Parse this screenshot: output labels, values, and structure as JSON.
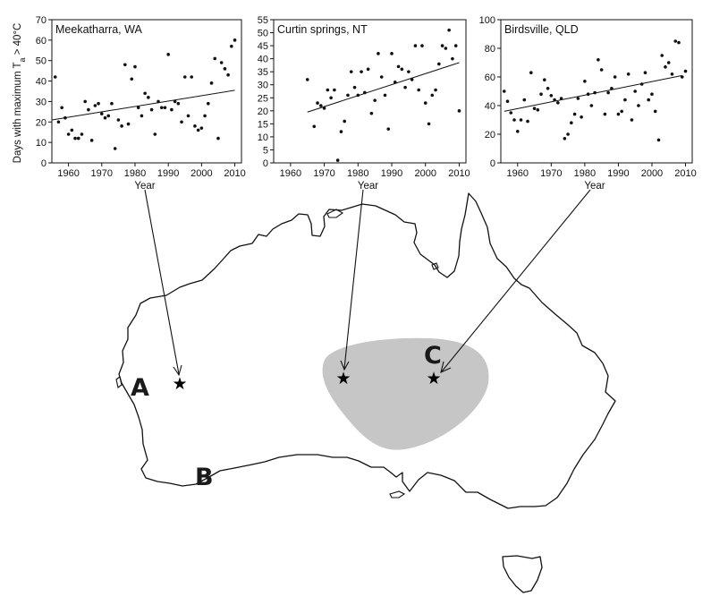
{
  "figure": {
    "ylabel": "Days with maximum T",
    "ylabel_sub": "a",
    "ylabel_tail": " > 40°C"
  },
  "chart_data": [
    {
      "type": "scatter",
      "title": "Meekatharra, WA",
      "xlabel": "Year",
      "ylabel": "Days with maximum Ta > 40°C",
      "xlim": [
        1955,
        2012
      ],
      "ylim": [
        0,
        70
      ],
      "xticks": [
        1960,
        1970,
        1980,
        1990,
        2000,
        2010
      ],
      "yticks": [
        0,
        10,
        20,
        30,
        40,
        50,
        60,
        70
      ],
      "x": [
        1956,
        1957,
        1958,
        1959,
        1960,
        1961,
        1962,
        1963,
        1964,
        1965,
        1966,
        1967,
        1968,
        1969,
        1970,
        1971,
        1972,
        1973,
        1974,
        1975,
        1976,
        1977,
        1978,
        1979,
        1980,
        1981,
        1982,
        1983,
        1984,
        1985,
        1986,
        1987,
        1988,
        1989,
        1990,
        1991,
        1992,
        1993,
        1994,
        1995,
        1996,
        1997,
        1998,
        1999,
        2000,
        2001,
        2002,
        2003,
        2004,
        2005,
        2006,
        2007,
        2008,
        2009,
        2010
      ],
      "y": [
        42,
        20,
        27,
        22,
        14,
        16,
        12,
        12,
        14,
        30,
        26,
        11,
        28,
        29,
        24,
        22,
        23,
        29,
        7,
        21,
        18,
        48,
        19,
        41,
        47,
        27,
        23,
        34,
        32,
        26,
        14,
        30,
        27,
        27,
        53,
        26,
        30,
        29,
        20,
        42,
        23,
        42,
        18,
        16,
        17,
        23,
        29,
        39,
        51,
        12,
        49,
        46,
        43,
        57,
        60
      ],
      "trend": {
        "x": [
          1955,
          2010
        ],
        "y": [
          21,
          35.5
        ]
      }
    },
    {
      "type": "scatter",
      "title": "Curtin springs, NT",
      "xlabel": "Year",
      "ylabel": "",
      "xlim": [
        1955,
        2012
      ],
      "ylim": [
        0,
        55
      ],
      "xticks": [
        1960,
        1970,
        1980,
        1990,
        2000,
        2010
      ],
      "yticks": [
        0,
        5,
        10,
        15,
        20,
        25,
        30,
        35,
        40,
        45,
        50,
        55
      ],
      "x": [
        1965,
        1967,
        1968,
        1969,
        1970,
        1971,
        1972,
        1973,
        1974,
        1975,
        1976,
        1977,
        1978,
        1979,
        1980,
        1981,
        1982,
        1983,
        1984,
        1985,
        1986,
        1987,
        1988,
        1989,
        1990,
        1991,
        1992,
        1993,
        1994,
        1995,
        1996,
        1997,
        1998,
        1999,
        2000,
        2001,
        2002,
        2003,
        2004,
        2005,
        2006,
        2007,
        2008,
        2009,
        2010
      ],
      "y": [
        32,
        14,
        23,
        22,
        21,
        28,
        25,
        28,
        1,
        12,
        16,
        26,
        35,
        29,
        26,
        35,
        27,
        36,
        19,
        24,
        42,
        33,
        26,
        13,
        42,
        31,
        37,
        36,
        29,
        35,
        32,
        45,
        28,
        45,
        23,
        15,
        26,
        28,
        38,
        45,
        44,
        51,
        40,
        45,
        20
      ],
      "trend": {
        "x": [
          1965,
          2010
        ],
        "y": [
          19.5,
          38.5
        ]
      }
    },
    {
      "type": "scatter",
      "title": "Birdsville, QLD",
      "xlabel": "Year",
      "ylabel": "",
      "xlim": [
        1955,
        2012
      ],
      "ylim": [
        0,
        100
      ],
      "xticks": [
        1960,
        1970,
        1980,
        1990,
        2000,
        2010
      ],
      "yticks": [
        0,
        20,
        40,
        60,
        80,
        100
      ],
      "x": [
        1956,
        1957,
        1958,
        1959,
        1960,
        1961,
        1962,
        1963,
        1964,
        1965,
        1966,
        1967,
        1968,
        1969,
        1970,
        1971,
        1972,
        1973,
        1974,
        1975,
        1976,
        1977,
        1978,
        1979,
        1980,
        1981,
        1982,
        1983,
        1984,
        1985,
        1986,
        1987,
        1988,
        1989,
        1990,
        1991,
        1992,
        1993,
        1994,
        1995,
        1996,
        1997,
        1998,
        1999,
        2000,
        2001,
        2002,
        2003,
        2004,
        2005,
        2006,
        2007,
        2008,
        2009,
        2010
      ],
      "y": [
        50,
        43,
        35,
        30,
        22,
        30,
        44,
        29,
        63,
        38,
        37,
        48,
        58,
        52,
        47,
        44,
        42,
        45,
        17,
        20,
        28,
        34,
        45,
        32,
        57,
        48,
        40,
        49,
        72,
        65,
        34,
        49,
        52,
        60,
        34,
        36,
        44,
        62,
        30,
        50,
        40,
        55,
        63,
        44,
        48,
        36,
        16,
        75,
        67,
        70,
        62,
        85,
        84,
        60,
        64
      ],
      "trend": {
        "x": [
          1956,
          2009
        ],
        "y": [
          36,
          61
        ]
      }
    }
  ],
  "map": {
    "region_label": "C",
    "sites": [
      {
        "label": "A"
      },
      {
        "label": "B"
      }
    ],
    "star_glyph": "★"
  }
}
